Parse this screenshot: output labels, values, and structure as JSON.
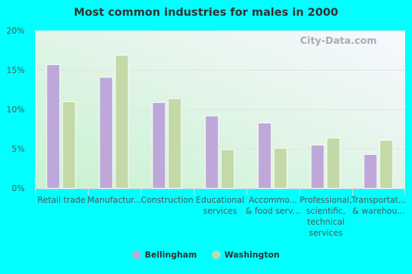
{
  "chart_data": {
    "type": "bar",
    "title": "Most common industries for males in 2000",
    "categories": [
      [
        "Retail trade"
      ],
      [
        "Manufactur..."
      ],
      [
        "Construction"
      ],
      [
        "Educational",
        "services"
      ],
      [
        "Accommo...",
        "& food serv..."
      ],
      [
        "Professional,",
        "scientific,",
        "technical",
        "services"
      ],
      [
        "Transportat...",
        "& warehou..."
      ]
    ],
    "series": [
      {
        "name": "Bellingham",
        "color": "#bea8d9",
        "values": [
          15.7,
          14.1,
          10.9,
          9.2,
          8.3,
          5.5,
          4.3
        ]
      },
      {
        "name": "Washington",
        "color": "#c4d9a8",
        "values": [
          11.0,
          16.9,
          11.4,
          4.9,
          5.1,
          6.4,
          6.1
        ]
      }
    ],
    "ylim": [
      0,
      20
    ],
    "yticks": [
      "0%",
      "5%",
      "10%",
      "15%",
      "20%"
    ],
    "grid": true,
    "legend": "bottom",
    "xlabel": "",
    "ylabel": ""
  },
  "watermark": "City-Data.com"
}
